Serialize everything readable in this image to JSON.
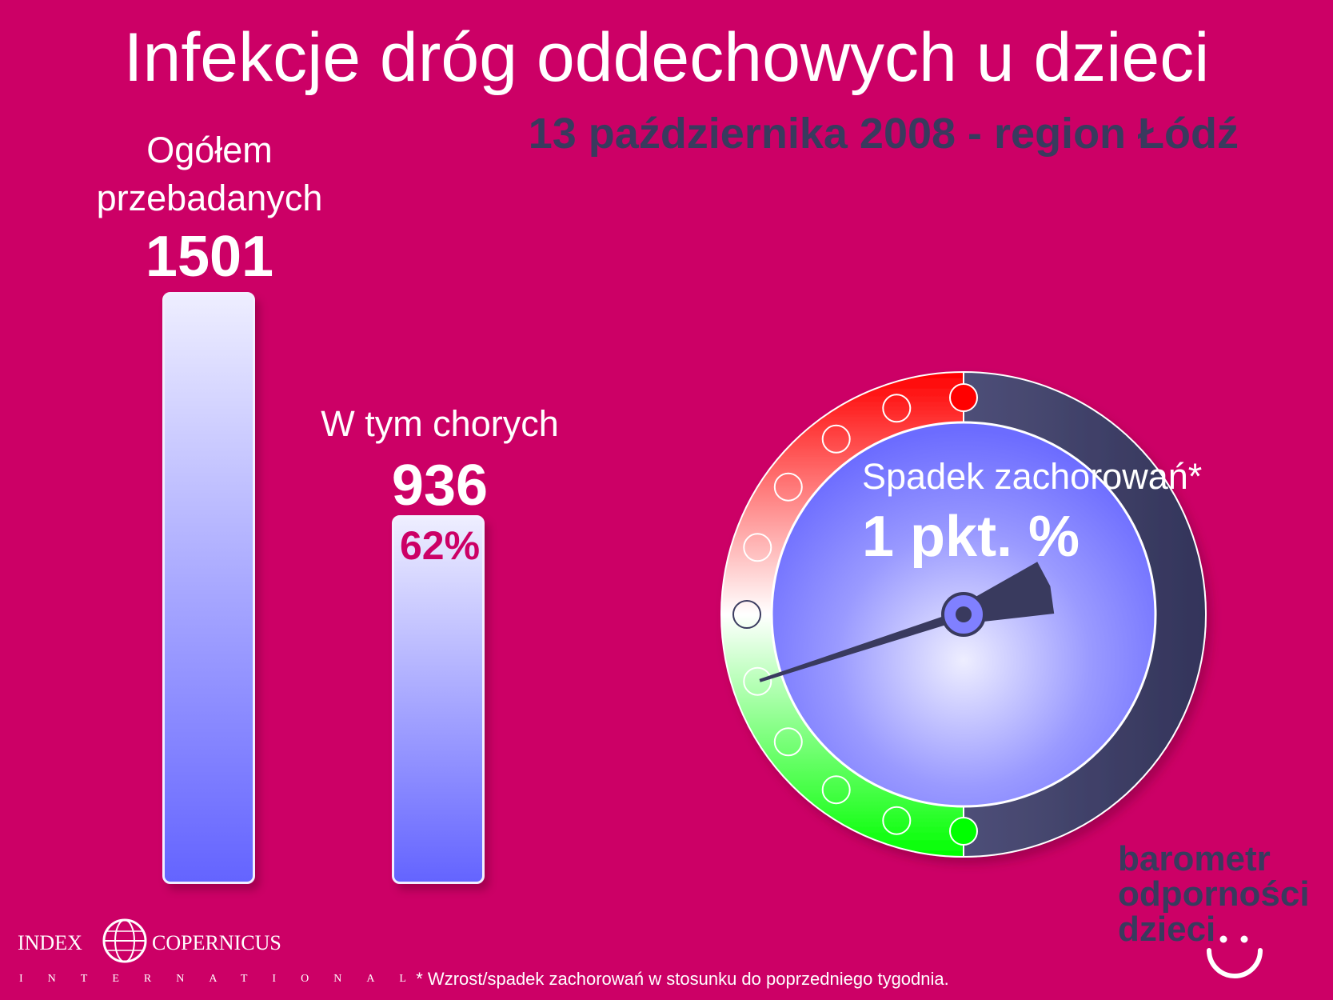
{
  "title": "Infekcje dróg oddechowych u dzieci",
  "subtitle": "13 października 2008 - region Łódź",
  "chart_data": [
    {
      "type": "bar",
      "categories": [
        "Ogółem przebadanych",
        "W tym chorych"
      ],
      "values": [
        1501,
        936
      ],
      "category_labels": [
        "Ogółem",
        "przebadanych",
        "W tym chorych"
      ],
      "value_labels": [
        "1501",
        "936"
      ],
      "percent_label": "62%",
      "percent_sick": 62,
      "ylim": [
        0,
        1501
      ],
      "bar_colors": {
        "top": "#eeeeff",
        "bottom": "#6464ff"
      }
    },
    {
      "type": "gauge",
      "title": "Spadek zachorowań*",
      "value_label": "1 pkt. %",
      "value": -1,
      "scale": {
        "min": -5,
        "max": 5,
        "ticks": 11
      },
      "colors": {
        "increase": "#ff0000",
        "decrease": "#00ff00",
        "face": "#6c6cff",
        "rim": "#3b3c60"
      }
    }
  ],
  "footnote": "* Wzrost/spadek zachorowań w stosunku do poprzedniego tygodnia.",
  "brand": {
    "line1": "barometr",
    "line2": "odporności",
    "line3": "dzieci"
  },
  "logo": {
    "left": "INDEX",
    "right": "COPERNICUS",
    "sub": "INTERNATIONAL",
    "icon": "globe-icon"
  },
  "colors": {
    "background": "#cc0066",
    "navy": "#393a5e",
    "white": "#ffffff"
  }
}
